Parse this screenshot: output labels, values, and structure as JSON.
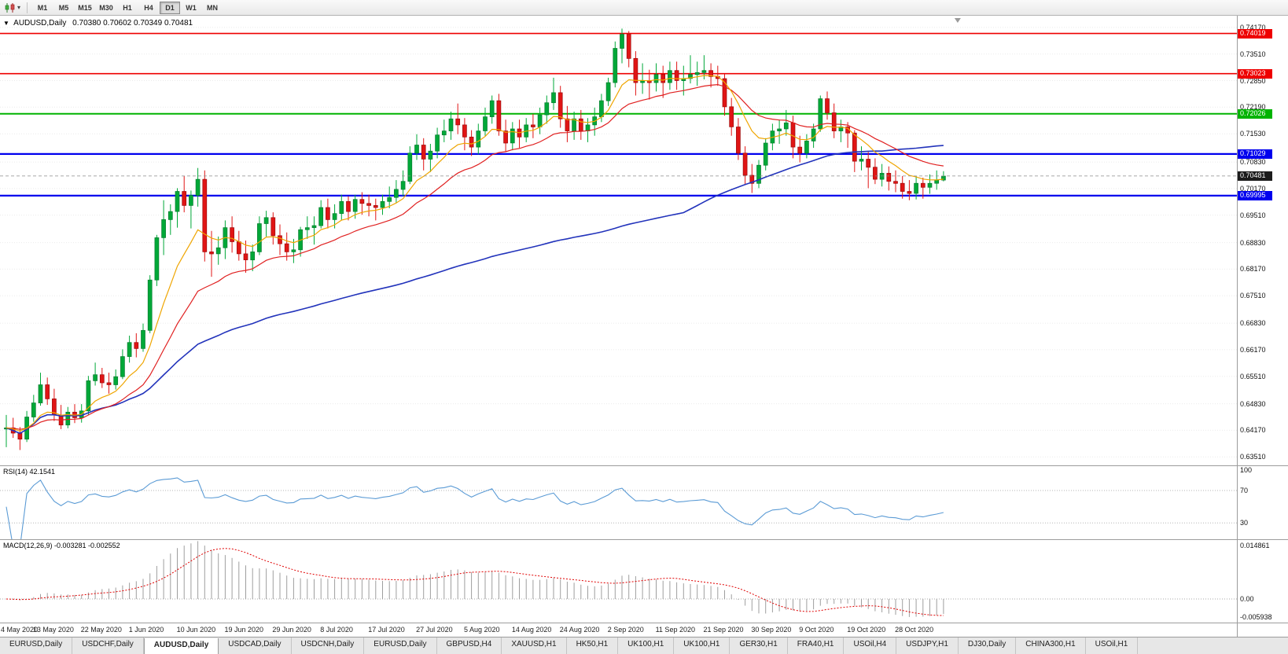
{
  "icons": {
    "symbol_dropdown": "▼",
    "chart_caret": "▾"
  },
  "toolbar": {
    "timeframes": [
      "M1",
      "M5",
      "M15",
      "M30",
      "H1",
      "H4",
      "D1",
      "W1",
      "MN"
    ],
    "active_timeframe": "D1"
  },
  "chart": {
    "symbol_label": "AUDUSD,Daily",
    "ohlc_text": "0.70380 0.70602 0.70349 0.70481"
  },
  "chart_data": {
    "type": "candlestick",
    "symbol": "AUDUSD",
    "timeframe": "Daily",
    "x_label_interval": 7,
    "x_labels": [
      "4 May 2020",
      "13 May 2020",
      "22 May 2020",
      "1 Jun 2020",
      "10 Jun 2020",
      "19 Jun 2020",
      "29 Jun 2020",
      "8 Jul 2020",
      "17 Jul 2020",
      "27 Jul 2020",
      "5 Aug 2020",
      "14 Aug 2020",
      "24 Aug 2020",
      "2 Sep 2020",
      "11 Sep 2020",
      "21 Sep 2020",
      "30 Sep 2020",
      "9 Oct 2020",
      "19 Oct 2020",
      "28 Oct 2020"
    ],
    "candles": [
      [
        0.642,
        0.6455,
        0.6375,
        0.6423
      ],
      [
        0.6423,
        0.6448,
        0.6398,
        0.641
      ],
      [
        0.641,
        0.6425,
        0.6368,
        0.6395
      ],
      [
        0.6395,
        0.6465,
        0.6388,
        0.645
      ],
      [
        0.645,
        0.6505,
        0.6438,
        0.6485
      ],
      [
        0.6485,
        0.656,
        0.6478,
        0.653
      ],
      [
        0.653,
        0.6548,
        0.648,
        0.6495
      ],
      [
        0.6495,
        0.652,
        0.644,
        0.6455
      ],
      [
        0.6455,
        0.648,
        0.642,
        0.643
      ],
      [
        0.643,
        0.6475,
        0.6422,
        0.6462
      ],
      [
        0.6462,
        0.6482,
        0.6435,
        0.6448
      ],
      [
        0.6448,
        0.6482,
        0.6436,
        0.6465
      ],
      [
        0.6465,
        0.6552,
        0.6455,
        0.654
      ],
      [
        0.654,
        0.6585,
        0.6528,
        0.6555
      ],
      [
        0.6555,
        0.6572,
        0.6522,
        0.6535
      ],
      [
        0.6535,
        0.656,
        0.6508,
        0.653
      ],
      [
        0.653,
        0.6568,
        0.6518,
        0.655
      ],
      [
        0.655,
        0.6618,
        0.6544,
        0.66
      ],
      [
        0.66,
        0.6652,
        0.6585,
        0.6635
      ],
      [
        0.6635,
        0.6658,
        0.6598,
        0.662
      ],
      [
        0.662,
        0.6682,
        0.6612,
        0.6665
      ],
      [
        0.6665,
        0.6802,
        0.6658,
        0.679
      ],
      [
        0.679,
        0.6902,
        0.6775,
        0.6895
      ],
      [
        0.6895,
        0.6988,
        0.6852,
        0.694
      ],
      [
        0.694,
        0.6978,
        0.6902,
        0.696
      ],
      [
        0.696,
        0.7018,
        0.692,
        0.701
      ],
      [
        0.701,
        0.7048,
        0.6958,
        0.6975
      ],
      [
        0.6975,
        0.7012,
        0.6918,
        0.7
      ],
      [
        0.7,
        0.7068,
        0.6972,
        0.704
      ],
      [
        0.704,
        0.7062,
        0.6836,
        0.686
      ],
      [
        0.686,
        0.6912,
        0.6798,
        0.6855
      ],
      [
        0.6855,
        0.6898,
        0.6828,
        0.687
      ],
      [
        0.687,
        0.6938,
        0.6842,
        0.692
      ],
      [
        0.692,
        0.6948,
        0.6858,
        0.6885
      ],
      [
        0.6885,
        0.6912,
        0.6838,
        0.6855
      ],
      [
        0.6855,
        0.6888,
        0.6808,
        0.684
      ],
      [
        0.684,
        0.6878,
        0.6812,
        0.686
      ],
      [
        0.686,
        0.6948,
        0.6852,
        0.693
      ],
      [
        0.693,
        0.6962,
        0.6898,
        0.6945
      ],
      [
        0.6945,
        0.6958,
        0.6878,
        0.69
      ],
      [
        0.69,
        0.6928,
        0.6852,
        0.688
      ],
      [
        0.688,
        0.6908,
        0.6838,
        0.686
      ],
      [
        0.686,
        0.6892,
        0.6832,
        0.6865
      ],
      [
        0.6865,
        0.6922,
        0.6848,
        0.6915
      ],
      [
        0.6915,
        0.6948,
        0.6892,
        0.692
      ],
      [
        0.692,
        0.6948,
        0.6878,
        0.6925
      ],
      [
        0.6925,
        0.6988,
        0.6918,
        0.697
      ],
      [
        0.697,
        0.6992,
        0.6918,
        0.694
      ],
      [
        0.694,
        0.6978,
        0.6918,
        0.6955
      ],
      [
        0.6955,
        0.7002,
        0.6938,
        0.6985
      ],
      [
        0.6985,
        0.6998,
        0.6938,
        0.696
      ],
      [
        0.696,
        0.7002,
        0.6942,
        0.699
      ],
      [
        0.699,
        0.7008,
        0.6952,
        0.698
      ],
      [
        0.698,
        0.7002,
        0.6948,
        0.6975
      ],
      [
        0.6975,
        0.6992,
        0.6938,
        0.697
      ],
      [
        0.697,
        0.7002,
        0.6952,
        0.6985
      ],
      [
        0.6985,
        0.7022,
        0.6968,
        0.6995
      ],
      [
        0.6995,
        0.7038,
        0.6982,
        0.7015
      ],
      [
        0.7015,
        0.7062,
        0.6998,
        0.7035
      ],
      [
        0.7035,
        0.7122,
        0.7028,
        0.7105
      ],
      [
        0.7105,
        0.7152,
        0.7088,
        0.7125
      ],
      [
        0.7125,
        0.7142,
        0.7062,
        0.709
      ],
      [
        0.709,
        0.7128,
        0.7058,
        0.711
      ],
      [
        0.711,
        0.7168,
        0.7092,
        0.715
      ],
      [
        0.715,
        0.7188,
        0.7132,
        0.716
      ],
      [
        0.716,
        0.7208,
        0.7138,
        0.719
      ],
      [
        0.719,
        0.7228,
        0.7152,
        0.7175
      ],
      [
        0.7175,
        0.7192,
        0.7112,
        0.7145
      ],
      [
        0.7145,
        0.7162,
        0.7098,
        0.712
      ],
      [
        0.712,
        0.7178,
        0.7102,
        0.716
      ],
      [
        0.716,
        0.7218,
        0.7148,
        0.7195
      ],
      [
        0.7195,
        0.7248,
        0.7178,
        0.7235
      ],
      [
        0.7235,
        0.7252,
        0.7148,
        0.716
      ],
      [
        0.716,
        0.7188,
        0.7108,
        0.713
      ],
      [
        0.713,
        0.7182,
        0.7112,
        0.7165
      ],
      [
        0.7165,
        0.7188,
        0.7118,
        0.7145
      ],
      [
        0.7145,
        0.7192,
        0.7132,
        0.7175
      ],
      [
        0.7175,
        0.7202,
        0.7142,
        0.717
      ],
      [
        0.717,
        0.7218,
        0.7152,
        0.72
      ],
      [
        0.72,
        0.7248,
        0.7178,
        0.723
      ],
      [
        0.723,
        0.7292,
        0.7212,
        0.7255
      ],
      [
        0.7255,
        0.7272,
        0.7168,
        0.719
      ],
      [
        0.719,
        0.7222,
        0.7132,
        0.716
      ],
      [
        0.716,
        0.7208,
        0.7138,
        0.719
      ],
      [
        0.719,
        0.7212,
        0.7138,
        0.716
      ],
      [
        0.716,
        0.7192,
        0.7132,
        0.7175
      ],
      [
        0.7175,
        0.7218,
        0.7148,
        0.7195
      ],
      [
        0.7195,
        0.7252,
        0.7182,
        0.7235
      ],
      [
        0.7235,
        0.7292,
        0.7222,
        0.728
      ],
      [
        0.728,
        0.7382,
        0.7268,
        0.7365
      ],
      [
        0.7365,
        0.7414,
        0.7328,
        0.74
      ],
      [
        0.74,
        0.7408,
        0.7318,
        0.734
      ],
      [
        0.734,
        0.7358,
        0.7248,
        0.728
      ],
      [
        0.728,
        0.7328,
        0.7252,
        0.7285
      ],
      [
        0.7285,
        0.7312,
        0.7238,
        0.728
      ],
      [
        0.728,
        0.7328,
        0.7258,
        0.73
      ],
      [
        0.73,
        0.7322,
        0.7242,
        0.728
      ],
      [
        0.728,
        0.7332,
        0.7262,
        0.731
      ],
      [
        0.731,
        0.7332,
        0.7262,
        0.7285
      ],
      [
        0.7285,
        0.7322,
        0.7248,
        0.729
      ],
      [
        0.729,
        0.7348,
        0.7278,
        0.73
      ],
      [
        0.73,
        0.7332,
        0.7272,
        0.7305
      ],
      [
        0.7305,
        0.7348,
        0.7288,
        0.731
      ],
      [
        0.731,
        0.7328,
        0.7268,
        0.7295
      ],
      [
        0.7295,
        0.7322,
        0.7272,
        0.729
      ],
      [
        0.729,
        0.7302,
        0.7198,
        0.722
      ],
      [
        0.722,
        0.7242,
        0.7148,
        0.717
      ],
      [
        0.717,
        0.7192,
        0.7088,
        0.7105
      ],
      [
        0.7105,
        0.7122,
        0.7028,
        0.705
      ],
      [
        0.705,
        0.7078,
        0.7006,
        0.703
      ],
      [
        0.703,
        0.7088,
        0.7018,
        0.7075
      ],
      [
        0.7075,
        0.7142,
        0.7062,
        0.713
      ],
      [
        0.713,
        0.7178,
        0.7112,
        0.716
      ],
      [
        0.716,
        0.7188,
        0.7128,
        0.7165
      ],
      [
        0.7165,
        0.7212,
        0.7148,
        0.718
      ],
      [
        0.718,
        0.7198,
        0.7092,
        0.712
      ],
      [
        0.712,
        0.7148,
        0.7082,
        0.7105
      ],
      [
        0.7105,
        0.7152,
        0.7092,
        0.7135
      ],
      [
        0.7135,
        0.7178,
        0.7118,
        0.7165
      ],
      [
        0.7165,
        0.7248,
        0.7158,
        0.724
      ],
      [
        0.724,
        0.7258,
        0.7188,
        0.7205
      ],
      [
        0.7205,
        0.7228,
        0.7142,
        0.716
      ],
      [
        0.716,
        0.7188,
        0.7132,
        0.717
      ],
      [
        0.717,
        0.7182,
        0.7118,
        0.7155
      ],
      [
        0.7155,
        0.7162,
        0.7058,
        0.7085
      ],
      [
        0.7085,
        0.7122,
        0.7062,
        0.709
      ],
      [
        0.709,
        0.7108,
        0.7018,
        0.707
      ],
      [
        0.707,
        0.7092,
        0.7028,
        0.704
      ],
      [
        0.704,
        0.7078,
        0.7022,
        0.7055
      ],
      [
        0.7055,
        0.7072,
        0.7012,
        0.7035
      ],
      [
        0.7035,
        0.7062,
        0.7008,
        0.703
      ],
      [
        0.703,
        0.7048,
        0.6992,
        0.701
      ],
      [
        0.701,
        0.7038,
        0.6988,
        0.7005
      ],
      [
        0.7005,
        0.7048,
        0.699,
        0.703
      ],
      [
        0.703,
        0.7044,
        0.6992,
        0.702
      ],
      [
        0.702,
        0.7052,
        0.7004,
        0.703
      ],
      [
        0.703,
        0.7062,
        0.7014,
        0.7038
      ],
      [
        0.7038,
        0.706,
        0.7035,
        0.7048
      ]
    ],
    "main": {
      "ylim": [
        0.633,
        0.7446
      ],
      "y_ticks": [
        "0.74170",
        "0.73510",
        "0.72850",
        "0.72190",
        "0.71530",
        "0.70830",
        "0.70170",
        "0.69510",
        "0.68830",
        "0.68170",
        "0.67510",
        "0.66830",
        "0.66170",
        "0.65510",
        "0.64830",
        "0.64170",
        "0.63510"
      ],
      "up_color": "#00a838",
      "up_border": "#067d2e",
      "down_color": "#e01515",
      "down_border": "#9d0b0b",
      "levels": [
        {
          "value": 0.74019,
          "label": "0.74019",
          "color": "#ee0000",
          "width": 1.6
        },
        {
          "value": 0.73023,
          "label": "0.73023",
          "color": "#ee0000",
          "width": 1.6
        },
        {
          "value": 0.72026,
          "label": "0.72026",
          "color": "#00b300",
          "width": 2
        },
        {
          "value": 0.71029,
          "label": "0.71029",
          "color": "#0000ee",
          "width": 2.2
        },
        {
          "value": 0.69995,
          "label": "0.69995",
          "color": "#0000ee",
          "width": 2.2
        }
      ],
      "current_price": {
        "value": 0.70481,
        "label": "0.70481",
        "box_color": "#1c1c1c"
      },
      "moving_averages": [
        {
          "name": "ma-slow-blue",
          "type": "sma",
          "period": 100,
          "color": "#2233bb",
          "width": 1.6
        },
        {
          "name": "ma-medium-red",
          "type": "ema",
          "period": 21,
          "color": "#e02020",
          "width": 1.2
        },
        {
          "name": "ma-fast-orange",
          "type": "ema",
          "period": 9,
          "color": "#efa500",
          "width": 1.2
        }
      ]
    },
    "rsi": {
      "label": "RSI(14) 42.1541",
      "period": 14,
      "value": 42.1541,
      "levels": [
        70,
        30
      ],
      "y_labels": [
        "100",
        "70",
        "30"
      ],
      "ylim": [
        10,
        100
      ],
      "color": "#5b9bd5"
    },
    "macd": {
      "label": "MACD(12,26,9) -0.003281 -0.002552",
      "fast": 12,
      "slow": 26,
      "signal": 9,
      "values": [
        -0.003281,
        -0.002552
      ],
      "ylim": [
        -0.005938,
        0.014861
      ],
      "y_labels": [
        "0.014861",
        "0.00",
        "-0.005938"
      ],
      "hist_color": "#9e9e9e",
      "signal_color": "#e00000"
    }
  },
  "tabs": [
    {
      "label": "EURUSD,Daily",
      "active": false
    },
    {
      "label": "USDCHF,Daily",
      "active": false
    },
    {
      "label": "AUDUSD,Daily",
      "active": true
    },
    {
      "label": "USDCAD,Daily",
      "active": false
    },
    {
      "label": "USDCNH,Daily",
      "active": false
    },
    {
      "label": "EURUSD,Daily",
      "active": false
    },
    {
      "label": "GBPUSD,H4",
      "active": false
    },
    {
      "label": "XAUUSD,H1",
      "active": false
    },
    {
      "label": "HK50,H1",
      "active": false
    },
    {
      "label": "UK100,H1",
      "active": false
    },
    {
      "label": "UK100,H1",
      "active": false
    },
    {
      "label": "GER30,H1",
      "active": false
    },
    {
      "label": "FRA40,H1",
      "active": false
    },
    {
      "label": "USOil,H4",
      "active": false
    },
    {
      "label": "USDJPY,H1",
      "active": false
    },
    {
      "label": "DJ30,Daily",
      "active": false
    },
    {
      "label": "CHINA300,H1",
      "active": false
    },
    {
      "label": "USOil,H1",
      "active": false
    }
  ]
}
